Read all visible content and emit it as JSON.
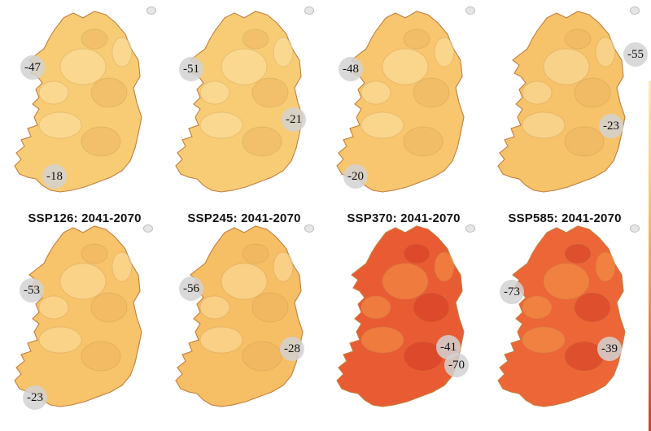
{
  "panels": [
    {
      "title": "",
      "fill": "#f8cc75",
      "markers": [
        "-47",
        "-18"
      ]
    },
    {
      "title": "",
      "fill": "#f8cc75",
      "markers": [
        "-51",
        "-21"
      ]
    },
    {
      "title": "",
      "fill": "#f8c66f",
      "markers": [
        "-48",
        "-20"
      ]
    },
    {
      "title": "",
      "fill": "#f6c26a",
      "markers": [
        "-55",
        "-23"
      ]
    },
    {
      "title": "SSP126: 2041-2070",
      "fill": "#f7c36b",
      "markers": [
        "-53",
        "-23"
      ]
    },
    {
      "title": "SSP245: 2041-2070",
      "fill": "#f6be65",
      "markers": [
        "-56",
        "-28"
      ]
    },
    {
      "title": "SSP370: 2041-2070",
      "fill": "#e95c33",
      "markers": [
        "-41",
        "-70"
      ]
    },
    {
      "title": "SSP585: 2041-2070",
      "fill": "#ec6638",
      "markers": [
        "-73",
        "-39"
      ]
    }
  ],
  "colors": {
    "light_yellow": "#fde2a4",
    "orange": "#f0a64f",
    "red": "#d83a28",
    "marker": "#d2d2d2"
  }
}
